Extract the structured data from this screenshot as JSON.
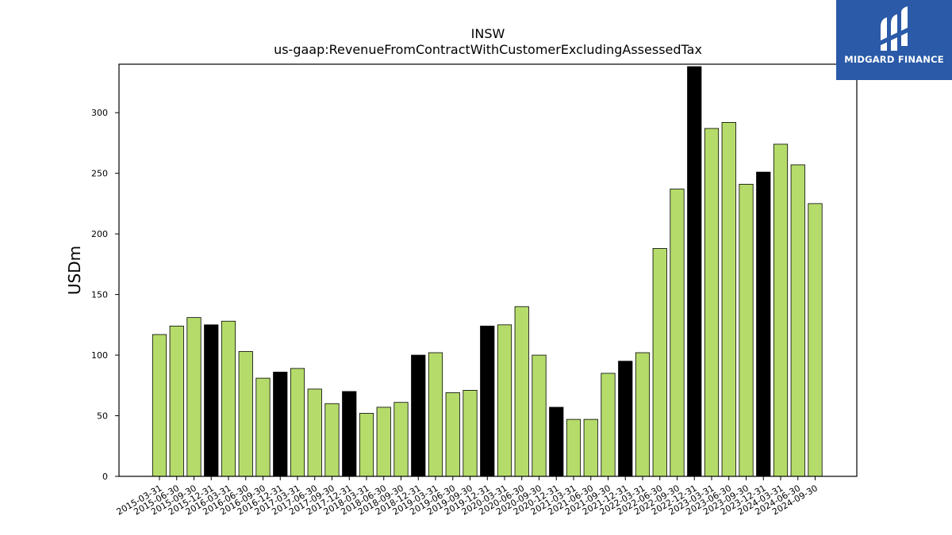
{
  "brand": {
    "logo_text": "MIDGARD FINANCE",
    "background": "#2a5aa8"
  },
  "chart_data": {
    "type": "bar",
    "title": "INSW",
    "subtitle": "us-gaap:RevenueFromContractWithCustomerExcludingAssessedTax",
    "ylabel": "USDm",
    "xlabel": "",
    "ylim": [
      0,
      340
    ],
    "yticks": [
      0,
      50,
      100,
      150,
      200,
      250,
      300
    ],
    "grid": false,
    "colors": {
      "quarter": "#b5dc6a",
      "year_end": "#000000",
      "edge": "#000000"
    },
    "categories": [
      "2015-03-31",
      "2015-06-30",
      "2015-09-30",
      "2015-12-31",
      "2016-03-31",
      "2016-06-30",
      "2016-09-30",
      "2016-12-31",
      "2017-03-31",
      "2017-06-30",
      "2017-09-30",
      "2017-12-31",
      "2018-03-31",
      "2018-06-30",
      "2018-09-30",
      "2018-12-31",
      "2019-03-31",
      "2019-06-30",
      "2019-09-30",
      "2019-12-31",
      "2020-03-31",
      "2020-06-30",
      "2020-09-30",
      "2020-12-31",
      "2021-03-31",
      "2021-06-30",
      "2021-09-30",
      "2021-12-31",
      "2022-03-31",
      "2022-06-30",
      "2022-09-30",
      "2022-12-31",
      "2023-03-31",
      "2023-06-30",
      "2023-09-30",
      "2023-12-31",
      "2024-03-31",
      "2024-06-30",
      "2024-09-30"
    ],
    "values": [
      117,
      124,
      131,
      125,
      128,
      103,
      81,
      86,
      89,
      72,
      60,
      70,
      52,
      57,
      61,
      100,
      102,
      69,
      71,
      124,
      125,
      140,
      100,
      57,
      47,
      47,
      85,
      95,
      102,
      188,
      237,
      338,
      287,
      292,
      241,
      251,
      274,
      257,
      225
    ]
  }
}
